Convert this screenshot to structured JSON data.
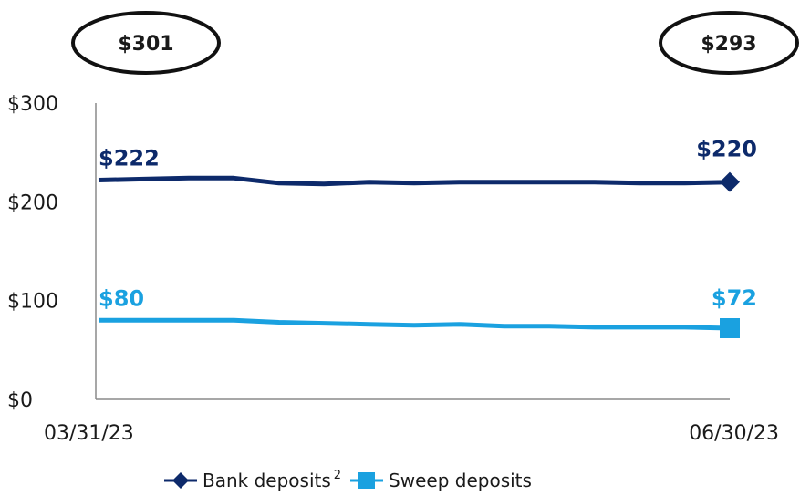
{
  "chart_data": {
    "type": "line",
    "x": [
      "03/31/23",
      "",
      "",
      "",
      "",
      "",
      "",
      "",
      "",
      "",
      "",
      "",
      "",
      "",
      "06/30/23"
    ],
    "xlabel": "",
    "ylabel": "",
    "ylim": [
      0,
      300
    ],
    "yticks": [
      "$0",
      "$100",
      "$200",
      "$300"
    ],
    "xticks": [
      "03/31/23",
      "06/30/23"
    ],
    "grid": false,
    "series": [
      {
        "name": "Bank deposits",
        "name_superscript": "2",
        "color": "#0d2a6b",
        "marker": "diamond",
        "values": [
          222,
          223,
          224,
          224,
          219,
          218,
          220,
          219,
          220,
          220,
          220,
          220,
          219,
          219,
          220
        ],
        "start_label": "$222",
        "end_label": "$220"
      },
      {
        "name": "Sweep deposits",
        "color": "#1aa1e0",
        "marker": "square",
        "values": [
          80,
          80,
          80,
          80,
          78,
          77,
          76,
          75,
          76,
          74,
          74,
          73,
          73,
          73,
          72
        ],
        "start_label": "$80",
        "end_label": "$72"
      }
    ],
    "totals": {
      "start": "$301",
      "end": "$293"
    },
    "legend_position": "bottom-center"
  }
}
